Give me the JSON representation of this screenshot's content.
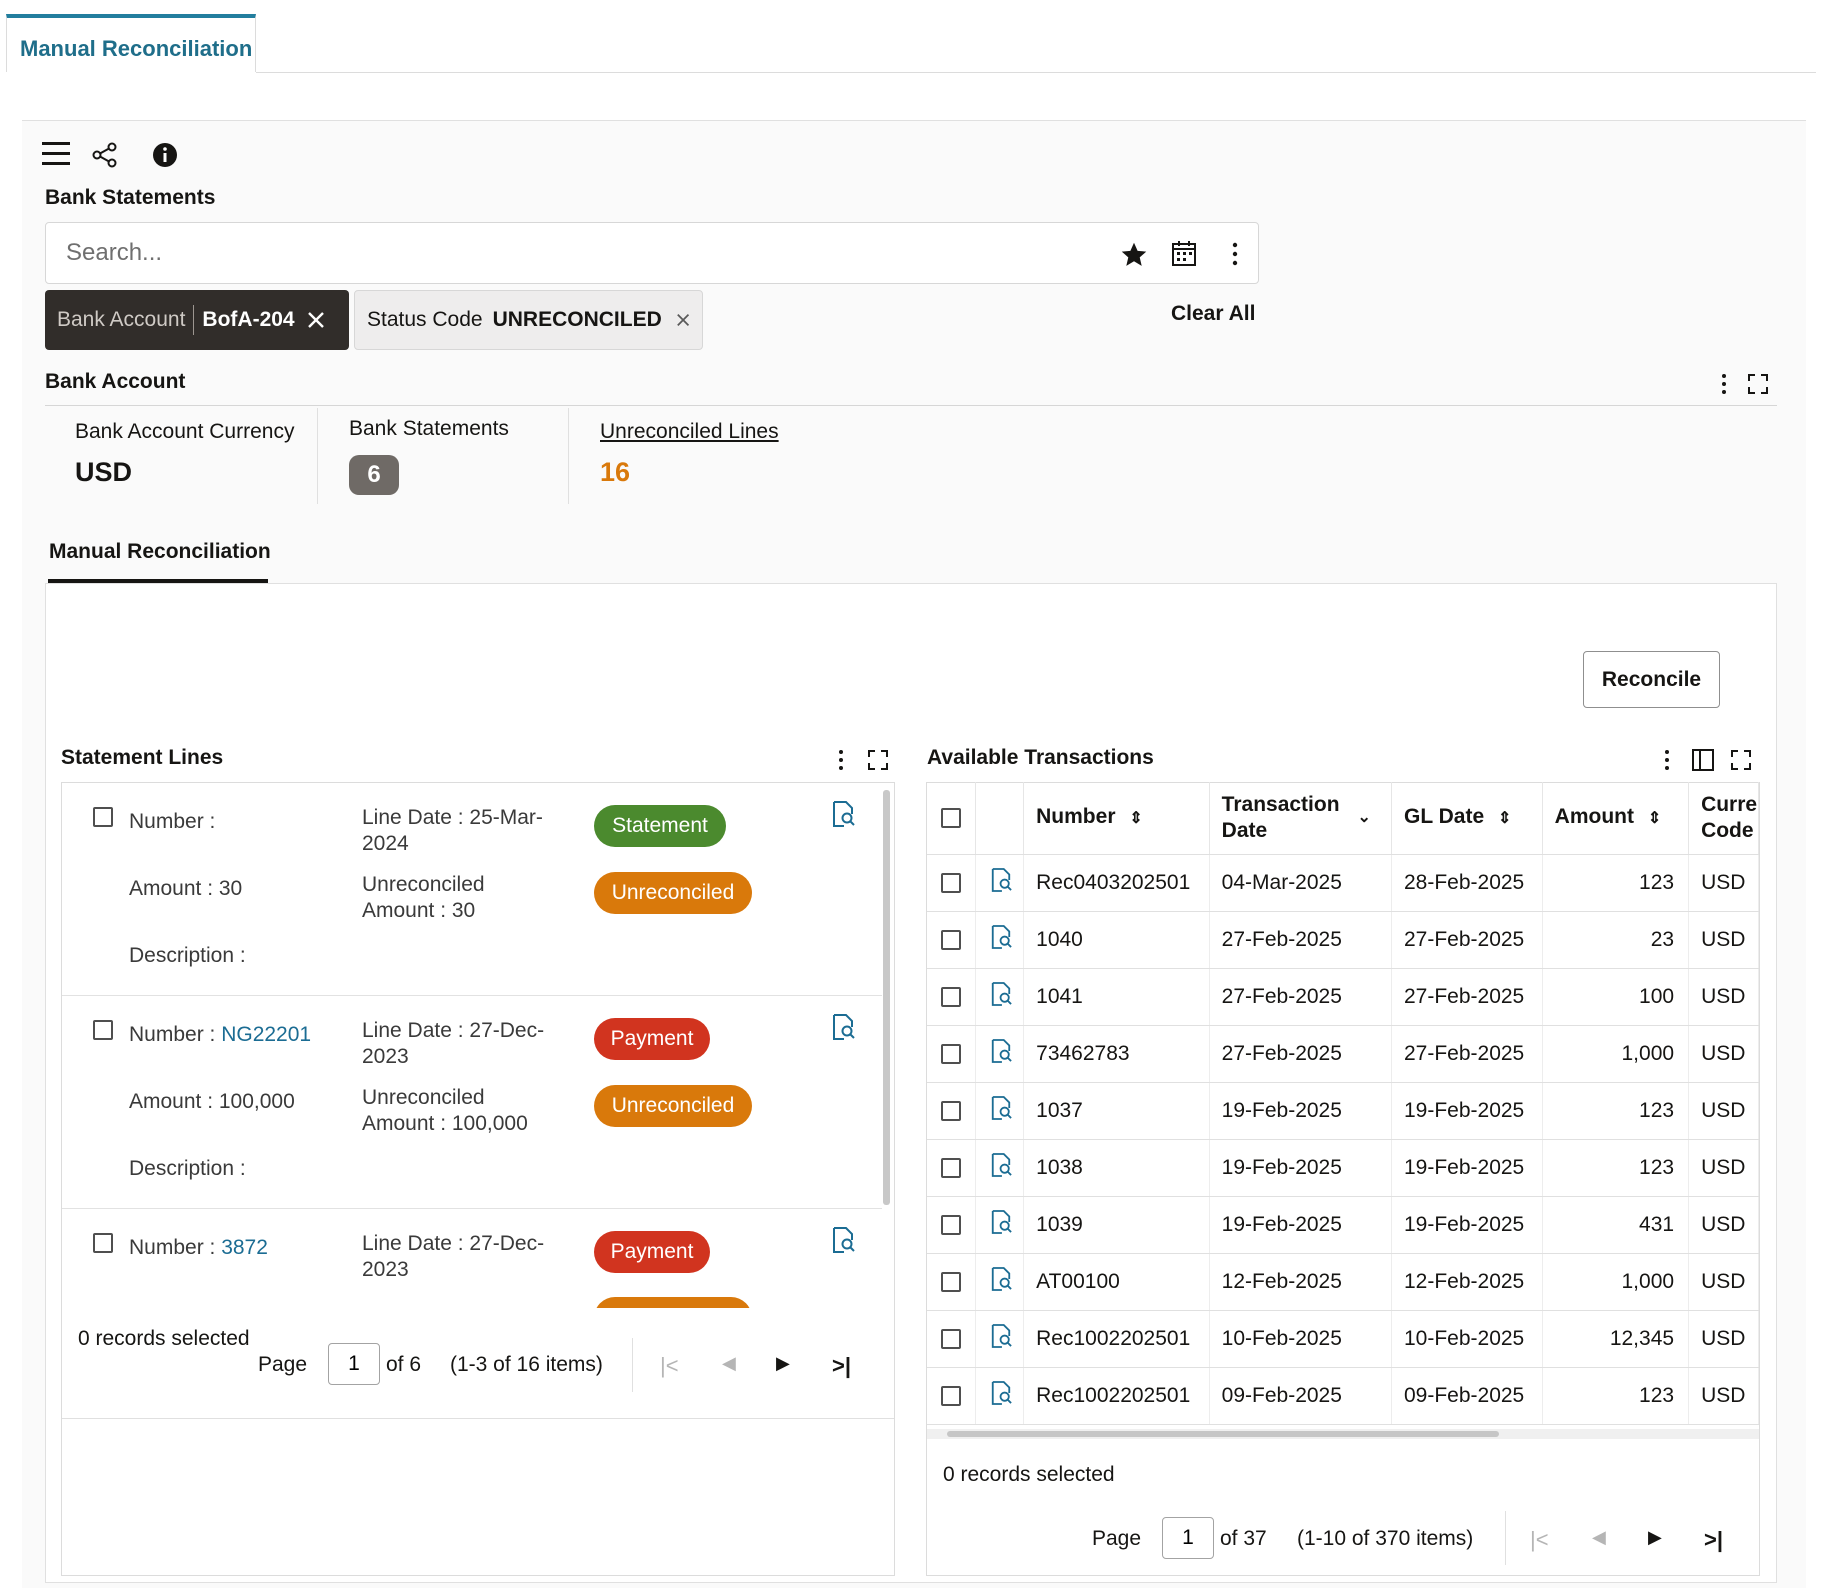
{
  "top_tab": {
    "label": "Manual Reconciliation"
  },
  "toolbar": {
    "icons": [
      "hamburger-menu-icon",
      "share-icon",
      "info-icon"
    ]
  },
  "bank_statements": {
    "title": "Bank Statements",
    "search": {
      "placeholder": "Search..."
    },
    "filters": [
      {
        "key": "Bank Account",
        "value": "BofA-204"
      },
      {
        "key": "Status Code",
        "value": "UNRECONCILED"
      }
    ],
    "clear_all": "Clear All"
  },
  "bank_account": {
    "title": "Bank Account",
    "metrics": [
      {
        "label": "Bank Account Currency",
        "value": "USD"
      },
      {
        "label": "Bank Statements",
        "value": "6"
      },
      {
        "label": "Unreconciled Lines",
        "value": "16"
      }
    ]
  },
  "subtab": {
    "label": "Manual Reconciliation"
  },
  "reconcile_button": "Reconcile",
  "statement_lines": {
    "title": "Statement Lines",
    "items": [
      {
        "number_label": "Number :",
        "number": "",
        "line_date_label": "Line Date : 25-Mar-",
        "line_date_cont": "2024",
        "amount_label": "Amount : 30",
        "unrec_label": "Unreconciled",
        "unrec_amount": "Amount : 30",
        "description_label": "Description :",
        "type": "Statement",
        "status": "Unreconciled"
      },
      {
        "number_label": "Number :",
        "number": "NG22201",
        "line_date_label": "Line Date : 27-Dec-",
        "line_date_cont": "2023",
        "amount_label": "Amount : 100,000",
        "unrec_label": "Unreconciled",
        "unrec_amount": "Amount : 100,000",
        "description_label": "Description :",
        "type": "Payment",
        "status": "Unreconciled"
      },
      {
        "number_label": "Number :",
        "number": "3872",
        "line_date_label": "Line Date : 27-Dec-",
        "line_date_cont": "2023",
        "type": "Payment"
      }
    ],
    "footer": {
      "selected": "0 records selected",
      "page_label": "Page",
      "page_value": "1",
      "of": "of 6",
      "range": "(1-3 of 16 items)"
    }
  },
  "available_transactions": {
    "title": "Available Transactions",
    "columns": [
      "Number",
      "Transaction Date",
      "GL Date",
      "Amount",
      "Currency Code"
    ],
    "column_lines": {
      "transaction_date": [
        "Transaction",
        "Date"
      ],
      "currency_code": [
        "Curre",
        "Code"
      ]
    },
    "rows": [
      {
        "number": "Rec0403202501",
        "transaction_date": "04-Mar-2025",
        "gl_date": "28-Feb-2025",
        "amount": "123",
        "currency": "USD"
      },
      {
        "number": "1040",
        "transaction_date": "27-Feb-2025",
        "gl_date": "27-Feb-2025",
        "amount": "23",
        "currency": "USD"
      },
      {
        "number": "1041",
        "transaction_date": "27-Feb-2025",
        "gl_date": "27-Feb-2025",
        "amount": "100",
        "currency": "USD"
      },
      {
        "number": "73462783",
        "transaction_date": "27-Feb-2025",
        "gl_date": "27-Feb-2025",
        "amount": "1,000",
        "currency": "USD"
      },
      {
        "number": "1037",
        "transaction_date": "19-Feb-2025",
        "gl_date": "19-Feb-2025",
        "amount": "123",
        "currency": "USD"
      },
      {
        "number": "1038",
        "transaction_date": "19-Feb-2025",
        "gl_date": "19-Feb-2025",
        "amount": "123",
        "currency": "USD"
      },
      {
        "number": "1039",
        "transaction_date": "19-Feb-2025",
        "gl_date": "19-Feb-2025",
        "amount": "431",
        "currency": "USD"
      },
      {
        "number": "AT00100",
        "transaction_date": "12-Feb-2025",
        "gl_date": "12-Feb-2025",
        "amount": "1,000",
        "currency": "USD"
      },
      {
        "number": "Rec1002202501",
        "transaction_date": "10-Feb-2025",
        "gl_date": "10-Feb-2025",
        "amount": "12,345",
        "currency": "USD"
      },
      {
        "number": "Rec1002202501",
        "transaction_date": "09-Feb-2025",
        "gl_date": "09-Feb-2025",
        "amount": "123",
        "currency": "USD"
      }
    ],
    "footer": {
      "selected": "0 records selected",
      "page_label": "Page",
      "page_value": "1",
      "of": "of 37",
      "range": "(1-10 of 370 items)"
    }
  },
  "colors": {
    "accent": "#227e9e",
    "link": "#1b6c93",
    "orange": "#d9790b",
    "green": "#4b8a2e",
    "red": "#d1341f",
    "chip_dark": "#312d2a"
  }
}
